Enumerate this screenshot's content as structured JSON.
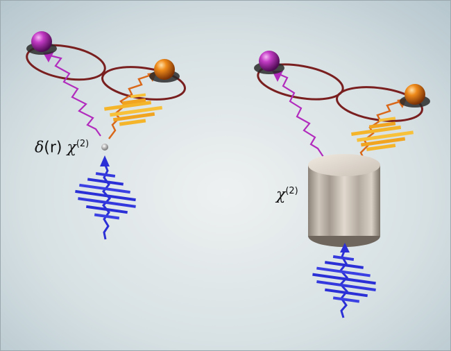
{
  "labels": {
    "point_source": {
      "symbol": "δ",
      "arg": "(r)",
      "chi": "χ",
      "order": "(2)"
    },
    "bulk_crystal": {
      "chi": "χ",
      "order": "(2)"
    }
  },
  "colors": {
    "background_center": "#eef1f1",
    "background_edge": "#b7c8cf",
    "pump": "#2b2fd6",
    "signal": "#b12bbd",
    "idler": "#e07a14",
    "idler_packet": "#f5b52a",
    "ring": "#7a1f1f",
    "crystal": "#c9bfb3"
  },
  "icons": [
    "magenta-sphere-icon",
    "orange-sphere-icon",
    "ring-icon",
    "arrow-icon",
    "cylinder-icon"
  ]
}
